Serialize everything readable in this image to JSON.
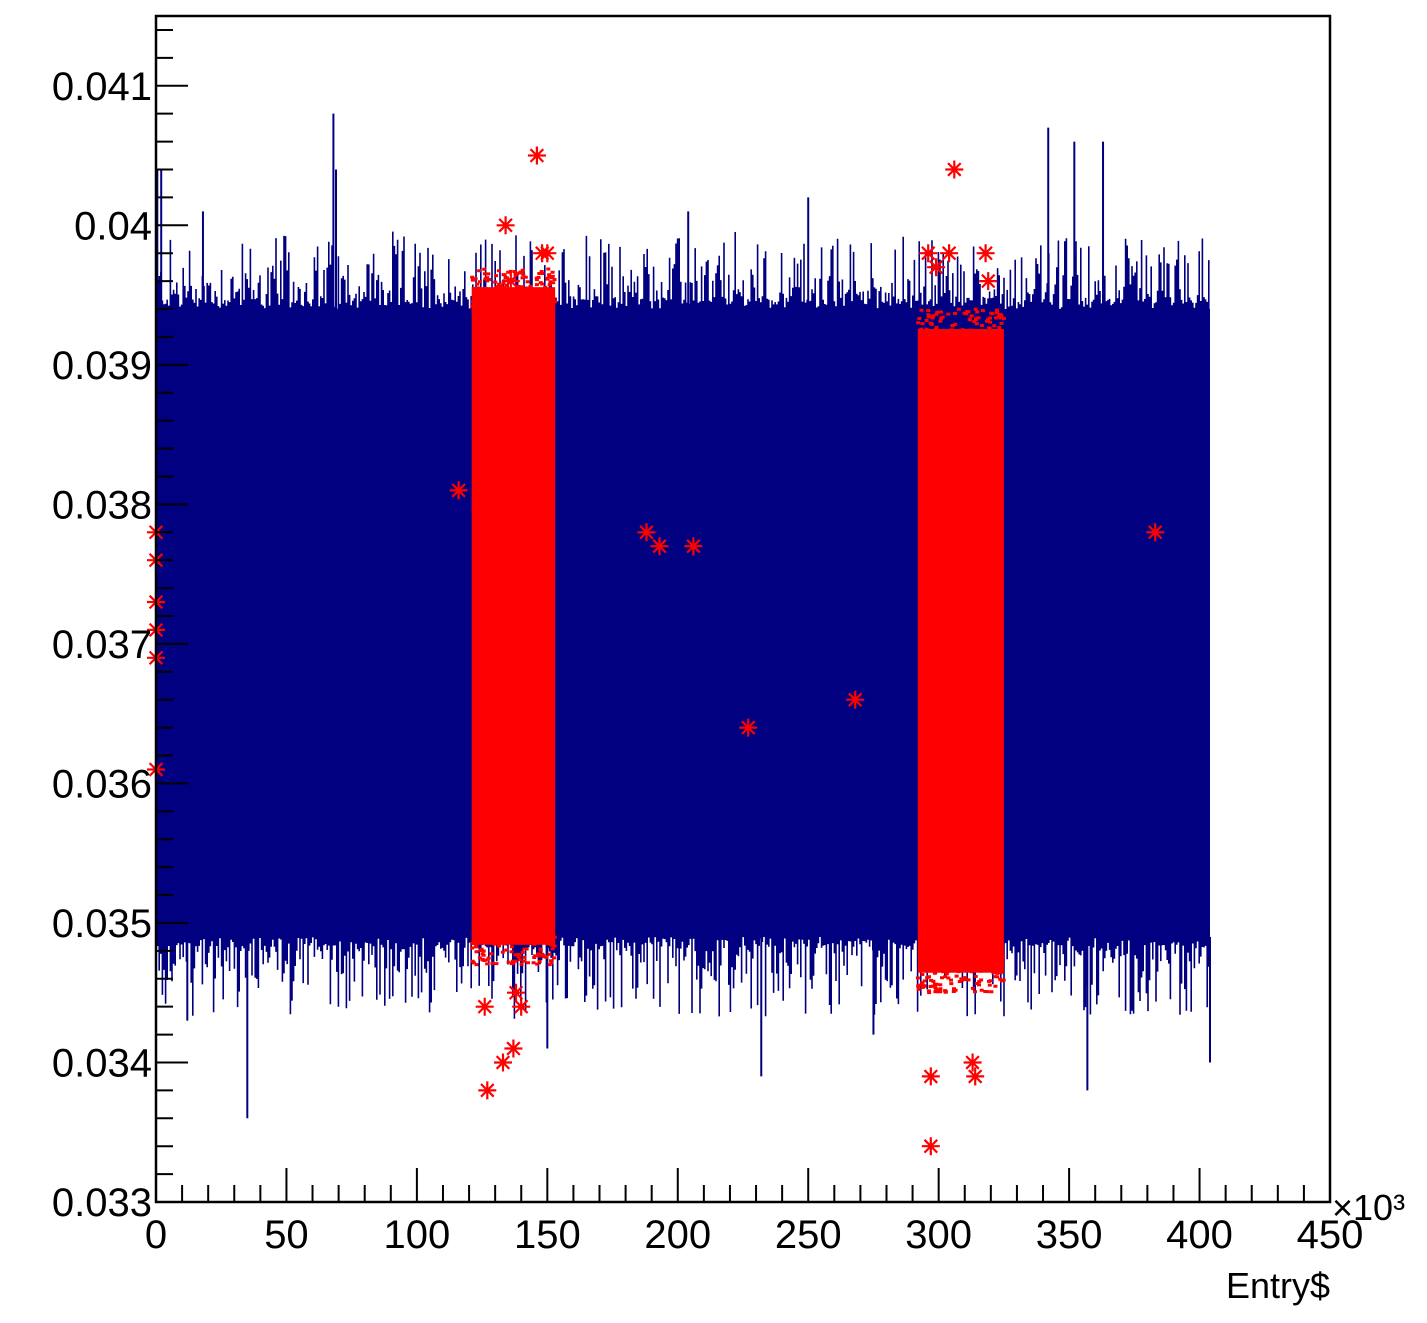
{
  "chart_data": {
    "type": "scatter",
    "title": "",
    "xlabel": "Entry$",
    "ylabel": "",
    "x_multiplier_label": "×10³",
    "xlim": [
      0,
      450
    ],
    "ylim": [
      0.033,
      0.0415
    ],
    "x_major_ticks": [
      0,
      50,
      100,
      150,
      200,
      250,
      300,
      350,
      400,
      450
    ],
    "x_tick_labels": [
      "0",
      "50",
      "100",
      "150",
      "200",
      "250",
      "300",
      "350",
      "400",
      "450"
    ],
    "y_major_ticks": [
      0.033,
      0.034,
      0.035,
      0.036,
      0.037,
      0.038,
      0.039,
      0.04,
      0.041
    ],
    "y_tick_labels": [
      "0.033",
      "0.034",
      "0.035",
      "0.036",
      "0.037",
      "0.038",
      "0.039",
      "0.04",
      "0.041"
    ],
    "grid": false,
    "legend": "none",
    "colors": {
      "main": "#000080",
      "highlight": "#ff0000"
    },
    "series": [
      {
        "name": "",
        "color": "#000080",
        "marker": "dot",
        "x_range": [
          0,
          404
        ],
        "core_band": [
          0.0349,
          0.0394
        ],
        "spike_tops": [
          [
            0.5,
            0.0404
          ],
          [
            2,
            0.0404
          ],
          [
            18,
            0.0401
          ],
          [
            68,
            0.0408
          ],
          [
            69,
            0.0404
          ],
          [
            204,
            0.0401
          ],
          [
            250,
            0.0402
          ],
          [
            342,
            0.0407
          ],
          [
            352,
            0.0406
          ],
          [
            363,
            0.0406
          ]
        ],
        "spike_bottoms": [
          [
            12,
            0.0343
          ],
          [
            35,
            0.0336
          ],
          [
            150,
            0.0341
          ],
          [
            232,
            0.0339
          ],
          [
            275,
            0.0342
          ],
          [
            357,
            0.0338
          ],
          [
            404,
            0.034
          ]
        ]
      },
      {
        "name": "",
        "color": "#ff0000",
        "marker": "star",
        "bands": [
          {
            "x": [
              121,
              153
            ],
            "y": [
              0.0347,
              0.0397
            ]
          },
          {
            "x": [
              292,
              325
            ],
            "y": [
              0.0345,
              0.0394
            ]
          }
        ],
        "points": [
          [
            0,
            0.0378
          ],
          [
            0,
            0.0376
          ],
          [
            0,
            0.0373
          ],
          [
            0,
            0.0371
          ],
          [
            0,
            0.0369
          ],
          [
            0,
            0.0361
          ],
          [
            116,
            0.0381
          ],
          [
            126,
            0.0344
          ],
          [
            127,
            0.0338
          ],
          [
            133,
            0.034
          ],
          [
            134,
            0.04
          ],
          [
            136,
            0.0396
          ],
          [
            137,
            0.0341
          ],
          [
            138,
            0.0345
          ],
          [
            140,
            0.0344
          ],
          [
            146,
            0.0405
          ],
          [
            148,
            0.0398
          ],
          [
            150,
            0.0398
          ],
          [
            188,
            0.0378
          ],
          [
            193,
            0.0377
          ],
          [
            206,
            0.0377
          ],
          [
            227,
            0.0364
          ],
          [
            268,
            0.0366
          ],
          [
            296,
            0.0398
          ],
          [
            297,
            0.0334
          ],
          [
            297,
            0.0339
          ],
          [
            299,
            0.0397
          ],
          [
            304,
            0.0398
          ],
          [
            306,
            0.0404
          ],
          [
            313,
            0.0385
          ],
          [
            313,
            0.034
          ],
          [
            314,
            0.0339
          ],
          [
            318,
            0.0398
          ],
          [
            319,
            0.0396
          ],
          [
            383,
            0.0378
          ]
        ]
      }
    ]
  }
}
